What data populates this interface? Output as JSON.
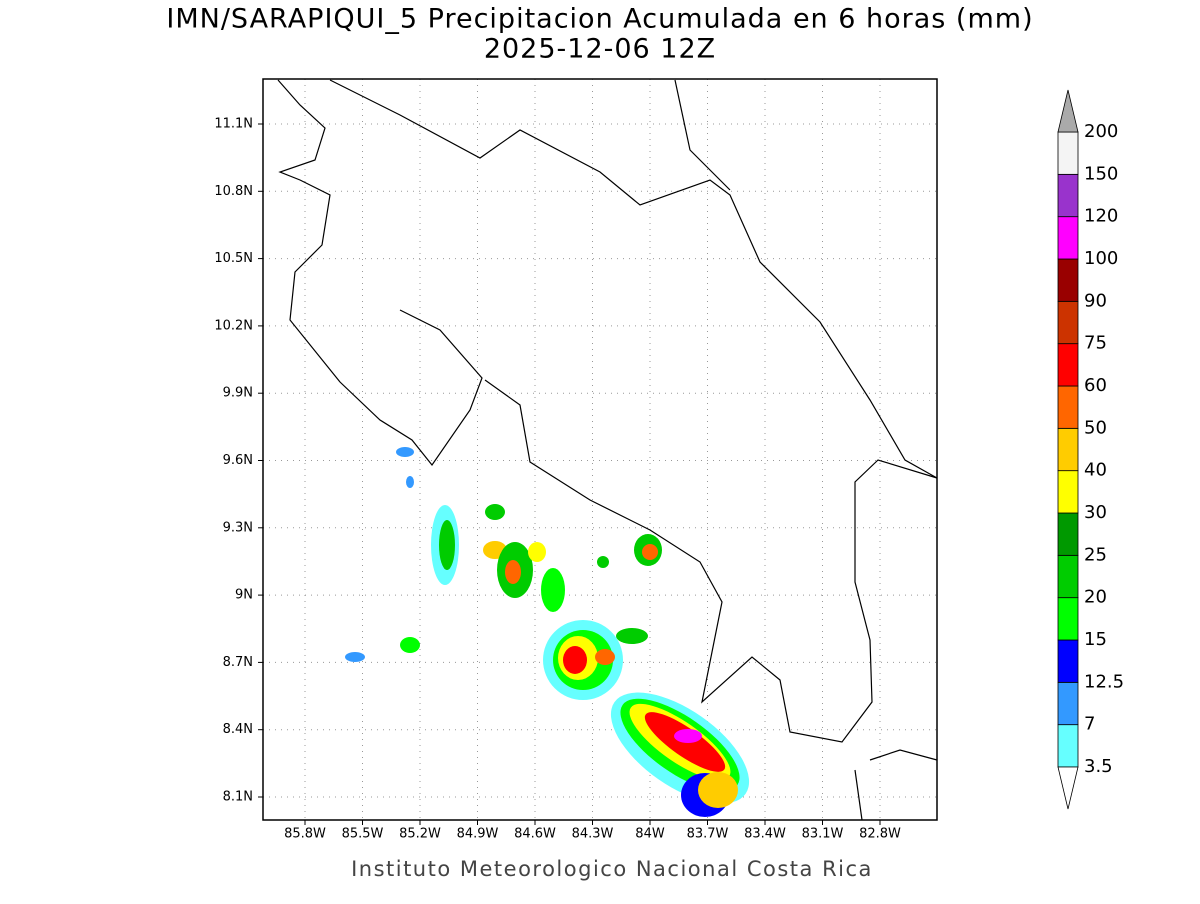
{
  "header": {
    "title": "IMN/SARAPIQUI_5 Precipitacion Acumulada en 6 horas (mm)",
    "subtitle": "2025-12-06 12Z"
  },
  "map": {
    "lon_labels": [
      "85.8W",
      "85.5W",
      "85.2W",
      "84.9W",
      "84.6W",
      "84.3W",
      "84W",
      "83.7W",
      "83.4W",
      "83.1W",
      "82.8W"
    ],
    "lat_labels": [
      "11.1N",
      "10.8N",
      "10.5N",
      "10.2N",
      "9.9N",
      "9.6N",
      "9.3N",
      "9N",
      "8.7N",
      "8.4N",
      "8.1N"
    ]
  },
  "colorbar": {
    "levels": [
      3.5,
      7,
      12.5,
      15,
      20,
      25,
      30,
      40,
      50,
      60,
      75,
      90,
      100,
      120,
      150,
      200
    ],
    "colors": [
      "#ffffff",
      "#66ffff",
      "#3399ff",
      "#0000ff",
      "#00ff00",
      "#00cc00",
      "#009900",
      "#ffff00",
      "#ffcc00",
      "#ff6600",
      "#ff0000",
      "#cc3300",
      "#990000",
      "#ff00ff",
      "#9933cc",
      "#f4f4f4",
      "#aaaaaa"
    ]
  },
  "footer": "Instituto Meteorologico Nacional Costa Rica"
}
